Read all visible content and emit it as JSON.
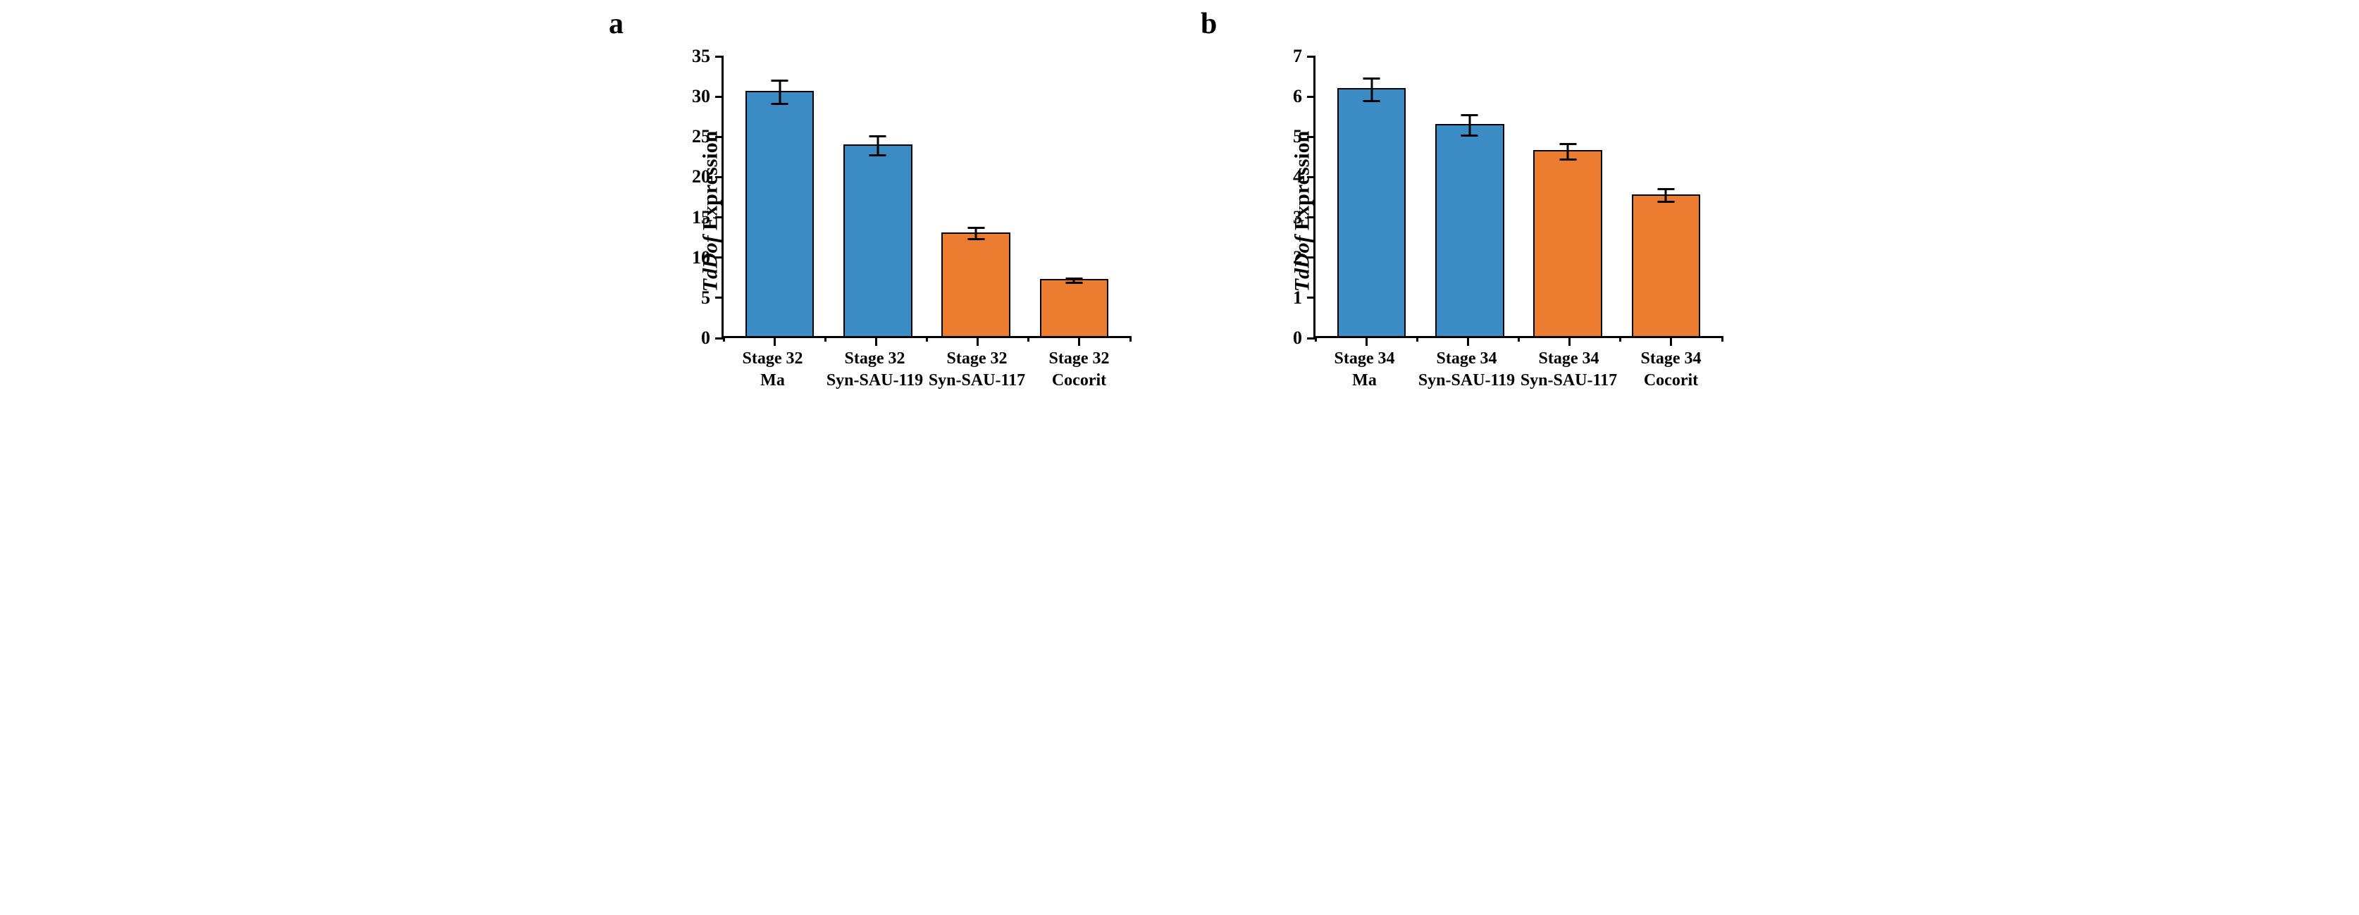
{
  "charts": [
    {
      "panel_label": "a",
      "type": "bar",
      "ylabel_prefix": "TdDof",
      "ylabel_suffix": " Expression",
      "ylim": [
        0,
        35
      ],
      "yticks": [
        0,
        5,
        10,
        15,
        20,
        25,
        30,
        35
      ],
      "label_fontsize": 30,
      "tick_fontsize": 26,
      "xlabel_fontsize": 24,
      "panel_label_fontsize": 42,
      "background_color": "#ffffff",
      "axis_color": "#000000",
      "bar_width": 0.7,
      "bar_border_color": "#000000",
      "errorbar_color": "#000000",
      "bars": [
        {
          "label_line1": "Stage 32",
          "label_line2": "Ma",
          "value": 30.7,
          "err": 1.6,
          "color": "#3b8bc4"
        },
        {
          "label_line1": "Stage 32",
          "label_line2": "Syn-SAU-119",
          "value": 24.0,
          "err": 1.3,
          "color": "#3b8bc4"
        },
        {
          "label_line1": "Stage 32",
          "label_line2": "Syn-SAU-117",
          "value": 13.0,
          "err": 0.8,
          "color": "#ec7c30"
        },
        {
          "label_line1": "Stage 32",
          "label_line2": "Cocorit",
          "value": 7.1,
          "err": 0.4,
          "color": "#ec7c30"
        }
      ]
    },
    {
      "panel_label": "b",
      "type": "bar",
      "ylabel_prefix": "TdDof",
      "ylabel_suffix": " Expression",
      "ylim": [
        0,
        7
      ],
      "yticks": [
        0,
        1,
        2,
        3,
        4,
        5,
        6,
        7
      ],
      "label_fontsize": 30,
      "tick_fontsize": 26,
      "xlabel_fontsize": 24,
      "panel_label_fontsize": 42,
      "background_color": "#ffffff",
      "axis_color": "#000000",
      "bar_width": 0.7,
      "bar_border_color": "#000000",
      "errorbar_color": "#000000",
      "bars": [
        {
          "label_line1": "Stage 34",
          "label_line2": "Ma",
          "value": 6.2,
          "err": 0.3,
          "color": "#3b8bc4"
        },
        {
          "label_line1": "Stage 34",
          "label_line2": "Syn-SAU-119",
          "value": 5.3,
          "err": 0.28,
          "color": "#3b8bc4"
        },
        {
          "label_line1": "Stage 34",
          "label_line2": "Syn-SAU-117",
          "value": 4.65,
          "err": 0.22,
          "color": "#ec7c30"
        },
        {
          "label_line1": "Stage 34",
          "label_line2": "Cocorit",
          "value": 3.55,
          "err": 0.18,
          "color": "#ec7c30"
        }
      ]
    }
  ]
}
